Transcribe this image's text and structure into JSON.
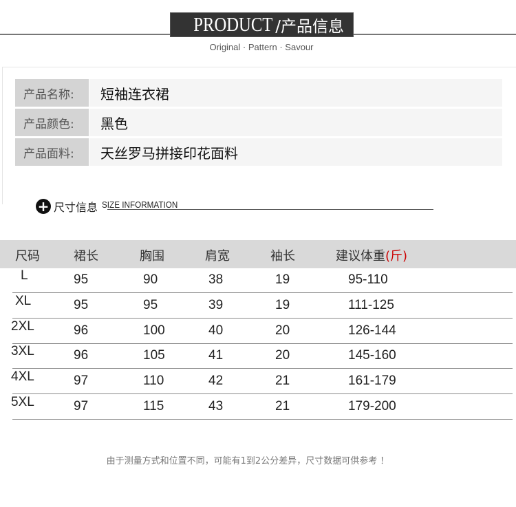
{
  "header": {
    "title_en": "PRODUCT",
    "title_zh": "/产品信息",
    "subtitle": "Original · Pattern · Savour"
  },
  "product_info": [
    {
      "label": "产品名称:",
      "value": "短袖连衣裙"
    },
    {
      "label": "产品颜色:",
      "value": "黑色"
    },
    {
      "label": "产品面料:",
      "value": "天丝罗马拼接印花面料"
    }
  ],
  "size_section": {
    "title_zh": "尺寸信息",
    "title_en": "SIZE INFORMATION",
    "icon": "plus-circle-icon"
  },
  "size_table": {
    "headers": [
      "尺码",
      "裙长",
      "胸围",
      "肩宽",
      "袖长",
      "建议体重"
    ],
    "unit": "(斤)",
    "rows": [
      [
        "L",
        "95",
        "90",
        "38",
        "19",
        "95-110"
      ],
      [
        "XL",
        "95",
        "95",
        "39",
        "19",
        "111-125"
      ],
      [
        "2XL",
        "96",
        "100",
        "40",
        "20",
        "126-144"
      ],
      [
        "3XL",
        "96",
        "105",
        "41",
        "20",
        "145-160"
      ],
      [
        "4XL",
        "97",
        "110",
        "42",
        "21",
        "161-179"
      ],
      [
        "5XL",
        "97",
        "115",
        "43",
        "21",
        "179-200"
      ]
    ]
  },
  "note": "由于测量方式和位置不同，可能有1到2公分差异，尺寸数据可供参考 ！",
  "colors": {
    "title_bg": "#333333",
    "header_bg": "#d9d9d9",
    "unit_red": "#cc0000"
  }
}
